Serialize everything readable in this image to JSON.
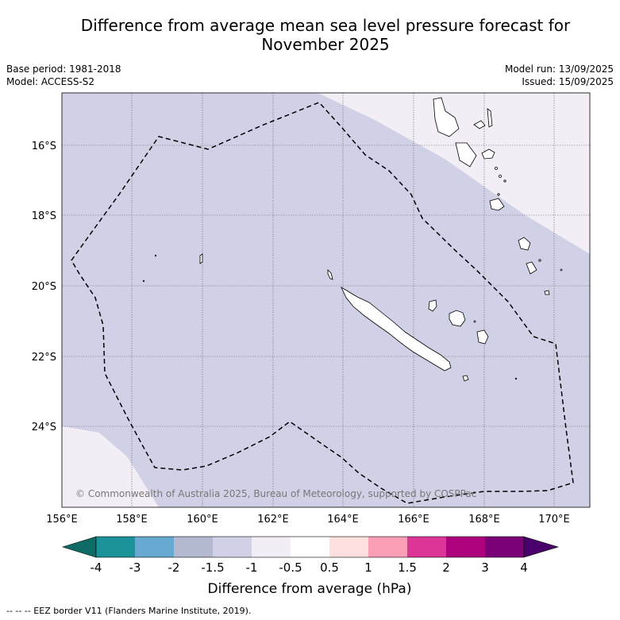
{
  "title_line1": "Difference from average mean sea level pressure forecast for",
  "title_line2": "November 2025",
  "base_period": "Base period: 1981-2018",
  "model": "Model: ACCESS-S2",
  "model_run": "Model run: 13/09/2025",
  "issued": "Issued: 15/09/2025",
  "copyright": "© Commonwealth of Australia 2025, Bureau of Meteorology, supported by COSPPac",
  "lat_labels": [
    "16°S",
    "18°S",
    "20°S",
    "22°S",
    "24°S"
  ],
  "lon_labels": [
    "156°E",
    "158°E",
    "160°E",
    "162°E",
    "164°E",
    "166°E",
    "168°E",
    "170°E"
  ],
  "colorbar": {
    "ticks": [
      "-4",
      "-3",
      "-2",
      "-1.5",
      "-1",
      "-0.5",
      "0.5",
      "1",
      "1.5",
      "2",
      "3",
      "4"
    ],
    "colors": [
      "#0f6b66",
      "#1b9198",
      "#67a9d0",
      "#b3b9d1",
      "#d0d1e6",
      "#f3eef6",
      "#ffffff",
      "#fde0dd",
      "#fa9fb5",
      "#dd3497",
      "#ae017e",
      "#7a0177",
      "#49006a"
    ],
    "label": "Difference from average (hPa)"
  },
  "footnote": "--  --  -- EEZ border V11 (Flanders Marine Institute, 2019).",
  "colors": {
    "dominant": "#d0d1e6",
    "light": "#f3eef6"
  }
}
